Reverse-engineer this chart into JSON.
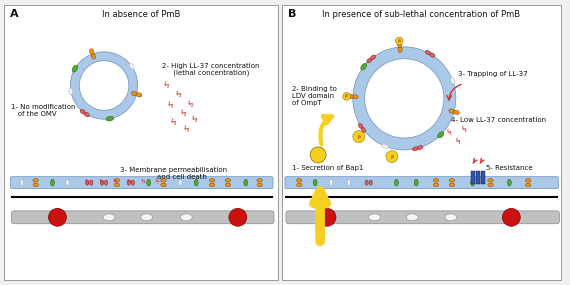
{
  "bg_color": "#f0f0f0",
  "panel_bg": "#ffffff",
  "title_A": "In absence of PmB",
  "title_B": "In presence of sub-lethal concentration of PmB",
  "label_A": "A",
  "label_B": "B",
  "text_A1": "1- No modification\n   of the OMV",
  "text_A2": "2- High LL-37 concentration\n     (lethal concentration)",
  "text_A3": "3- Membrane permeabilisation\n        and cell death",
  "text_B1": "1- Secretion of Bap1",
  "text_B2": "2- Binding to\nLDV domain\nof OmpT",
  "text_B3": "3- Trapping of LL-37",
  "text_B4": "4- Low LL-37 concentration",
  "text_B5": "5- Resistance",
  "omv_ring_color": "#aac8e8",
  "omv_ring_edge": "#7090b8",
  "orange_color": "#e8921e",
  "green_color": "#52a832",
  "pink_color": "#d86060",
  "white_color": "#f2f2f2",
  "yellow_color": "#f5d020",
  "bolt_color": "#cc2222",
  "blue_bar_color": "#3355aa",
  "chrom_color": "#c0c0c0",
  "red_blob_color": "#cc1111",
  "membrane_color": "#aac8e8",
  "membrane_edge": "#7090b8",
  "black_line": "#111111",
  "text_color": "#111111",
  "text_fs": 5.0,
  "label_fs": 8.0,
  "title_fs": 6.0
}
